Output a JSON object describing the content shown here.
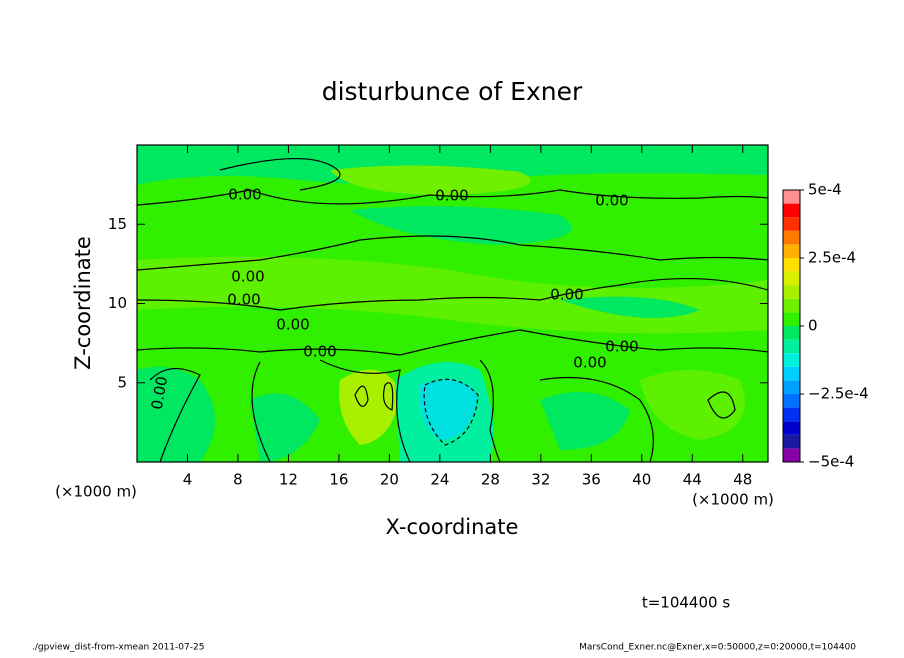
{
  "chart_data": {
    "type": "contour",
    "title": "disturbunce of Exner",
    "x_label": "X-coordinate",
    "y_label": "Z-coordinate",
    "axis_unit": "(×1000 m)",
    "xlim": [
      0,
      50
    ],
    "xticks": [
      4,
      8,
      12,
      16,
      20,
      24,
      28,
      32,
      36,
      40,
      44,
      48
    ],
    "ylim": [
      0,
      20
    ],
    "yticks": [
      5,
      10,
      15
    ],
    "contour_label": "0.00",
    "colorbar": {
      "lim": [
        -0.0005,
        0.0005
      ],
      "ticks": [
        {
          "value": 0.0005,
          "label": "5e-4"
        },
        {
          "value": 0.00025,
          "label": "2.5e-4"
        },
        0,
        {
          "value": -0.00025,
          "label": "−2.5e-4"
        },
        {
          "value": -0.0005,
          "label": "−5e-4"
        }
      ],
      "levels": [
        -0.0005,
        -0.00045,
        -0.0004,
        -0.00035,
        -0.0003,
        -0.00025,
        -0.0002,
        -0.00015,
        -0.0001,
        -5e-05,
        0,
        5e-05,
        0.0001,
        0.00015,
        0.0002,
        0.00025,
        0.0003,
        0.00035,
        0.0004,
        0.00045,
        0.0005
      ],
      "colors": [
        "#8a00a8",
        "#1a1aa0",
        "#0000cc",
        "#0030f0",
        "#0070ff",
        "#00a0ff",
        "#00d0ff",
        "#00f0e0",
        "#00f0a0",
        "#00e860",
        "#30f000",
        "#70f000",
        "#a8f000",
        "#d8f000",
        "#ffe000",
        "#ffb000",
        "#ff7800",
        "#ff3000",
        "#ff0000",
        "#ff9090"
      ]
    },
    "time_label": "t=104400 s",
    "footer_left": "./gpview_dist-from-xmean  2011-07-25",
    "footer_right": "MarsCond_Exner.nc@Exner,x=0:50000,z=0:20000,t=104400"
  }
}
